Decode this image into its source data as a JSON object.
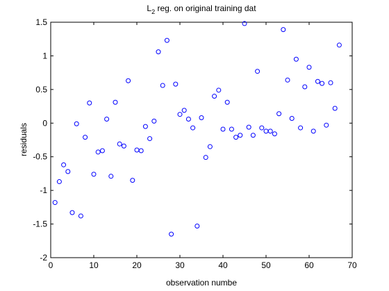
{
  "chart_data": {
    "type": "scatter",
    "title_main": "L",
    "title_sub": "2",
    "title_rest": " reg. on original training dat",
    "xlabel": "observation numbe",
    "ylabel": "residuals",
    "xlim": [
      0,
      70
    ],
    "ylim": [
      -2,
      1.5
    ],
    "xticks": [
      0,
      10,
      20,
      30,
      40,
      50,
      60,
      70
    ],
    "yticks": [
      -2,
      -1.5,
      -1,
      -0.5,
      0,
      0.5,
      1,
      1.5
    ],
    "xtick_labels": [
      "0",
      "10",
      "20",
      "30",
      "40",
      "50",
      "60",
      "70"
    ],
    "ytick_labels": [
      "-2",
      "-1.5",
      "-1",
      "-0.5",
      "0",
      "0.5",
      "1",
      "1.5"
    ],
    "grid": false,
    "marker": "circle",
    "marker_color": "#0000ff",
    "x": [
      1,
      2,
      3,
      4,
      5,
      6,
      7,
      8,
      9,
      10,
      11,
      12,
      13,
      14,
      15,
      16,
      17,
      18,
      19,
      20,
      21,
      22,
      23,
      24,
      25,
      26,
      27,
      28,
      29,
      30,
      31,
      32,
      33,
      34,
      35,
      36,
      37,
      38,
      39,
      40,
      41,
      42,
      43,
      44,
      45,
      46,
      47,
      48,
      49,
      50,
      51,
      52,
      53,
      54,
      55,
      56,
      57,
      58,
      59,
      60,
      61,
      62,
      63,
      64,
      65,
      66,
      67
    ],
    "y": [
      -1.18,
      -0.87,
      -0.62,
      -0.72,
      -1.33,
      -0.01,
      -1.38,
      -0.21,
      0.3,
      -0.76,
      -0.43,
      -0.41,
      0.06,
      -0.79,
      0.31,
      -0.31,
      -0.34,
      0.63,
      -0.85,
      -0.4,
      -0.41,
      -0.05,
      -0.23,
      0.03,
      1.06,
      0.56,
      1.23,
      -1.65,
      0.58,
      0.13,
      0.19,
      0.06,
      -0.07,
      -1.53,
      0.08,
      -0.51,
      -0.35,
      0.4,
      0.49,
      -0.09,
      0.31,
      -0.09,
      -0.21,
      -0.18,
      1.48,
      -0.06,
      -0.18,
      0.77,
      -0.07,
      -0.12,
      -0.12,
      -0.16,
      0.14,
      1.39,
      0.64,
      0.07,
      0.95,
      -0.07,
      0.54,
      0.83,
      -0.12,
      0.62,
      0.59,
      -0.03,
      0.6,
      0.22,
      1.16
    ]
  }
}
